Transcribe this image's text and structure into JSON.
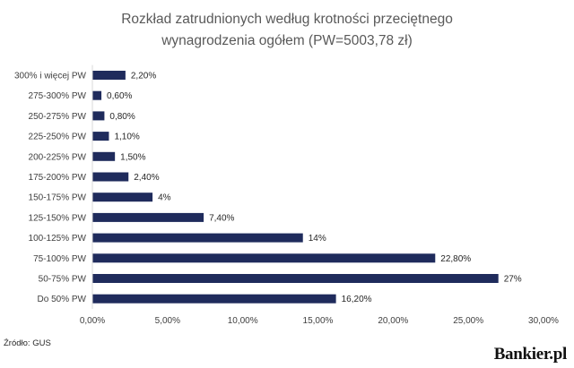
{
  "chart_data": {
    "type": "bar",
    "orientation": "horizontal",
    "title_lines": [
      "Rozkład zatrudnionych według krotności przeciętnego",
      "wynagrodzenia ogółem (PW=5003,78 zł)"
    ],
    "categories": [
      "300% i więcej PW",
      "275-300% PW",
      "250-275% PW",
      "225-250% PW",
      "200-225% PW",
      "175-200% PW",
      "150-175% PW",
      "125-150% PW",
      "100-125% PW",
      "75-100% PW",
      "50-75% PW",
      "Do 50% PW"
    ],
    "values": [
      2.2,
      0.6,
      0.8,
      1.1,
      1.5,
      2.4,
      4,
      7.4,
      14,
      22.8,
      27,
      16.2
    ],
    "data_labels": [
      "2,20%",
      "0,60%",
      "0,80%",
      "1,10%",
      "1,50%",
      "2,40%",
      "4%",
      "7,40%",
      "14%",
      "22,80%",
      "27%",
      "16,20%"
    ],
    "x_ticks": [
      0,
      5,
      10,
      15,
      20,
      25,
      30
    ],
    "x_tick_labels": [
      "0,00%",
      "5,00%",
      "10,00%",
      "15,00%",
      "20,00%",
      "25,00%",
      "30,00%"
    ],
    "xlim": [
      0,
      30
    ],
    "xlabel": "",
    "ylabel": "",
    "grid": false,
    "bar_color": "#1f2b5c"
  },
  "footer": {
    "source": "Źródło: GUS",
    "brand": "Bankier.pl"
  }
}
